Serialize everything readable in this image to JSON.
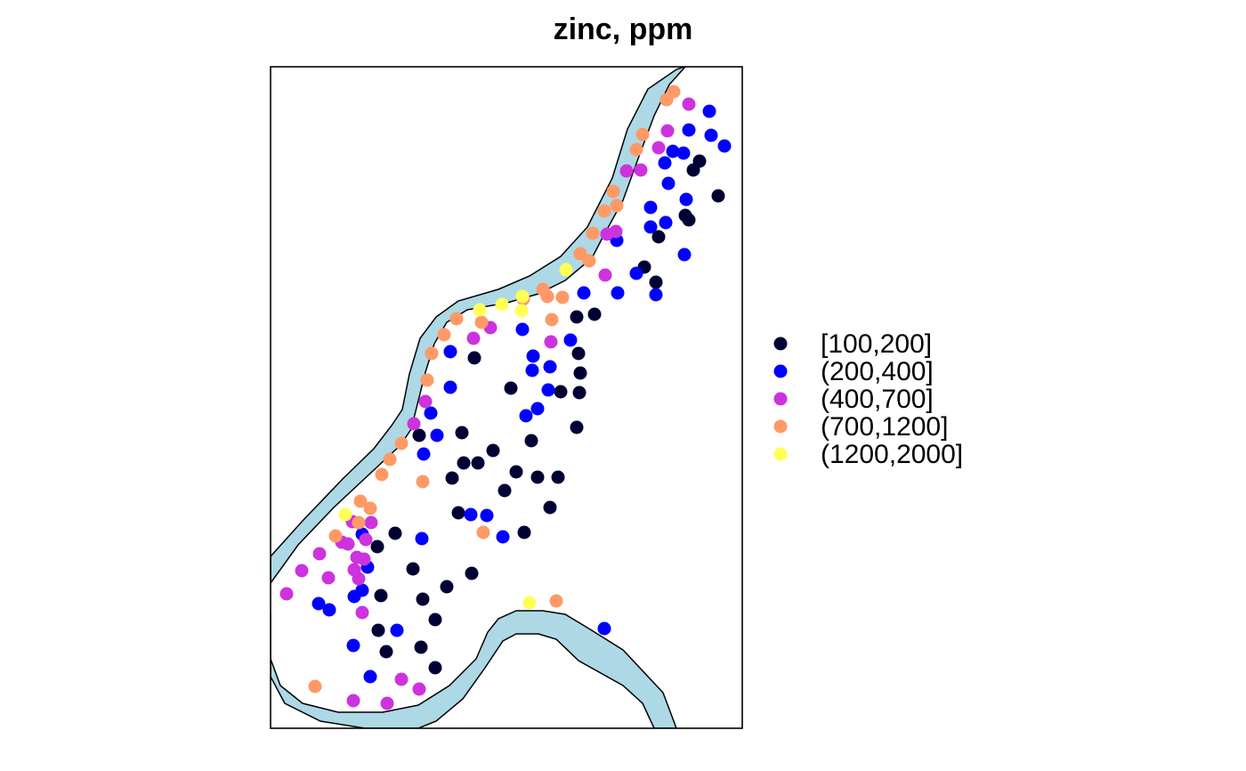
{
  "chart_data": {
    "type": "scatter",
    "title": "zinc, ppm",
    "xlabel": "",
    "ylabel": "",
    "grid": false,
    "legend_position": "right",
    "river_color": "#ADD8E6",
    "classes": [
      {
        "label": "[100,200]",
        "color": "#000033"
      },
      {
        "label": "(200,400]",
        "color": "#0000FF"
      },
      {
        "label": "(400,700]",
        "color": "#CC33DD"
      },
      {
        "label": "(700,1200]",
        "color": "#FF9966"
      },
      {
        "label": "(1200,2000]",
        "color": "#FFFF55"
      }
    ],
    "points": [
      [
        786,
        181,
        0
      ],
      [
        779,
        191,
        0
      ],
      [
        807,
        220,
        0
      ],
      [
        770,
        242,
        0
      ],
      [
        774,
        247,
        0
      ],
      [
        740,
        266,
        0
      ],
      [
        724,
        300,
        0
      ],
      [
        737,
        317,
        0
      ],
      [
        668,
        353,
        0
      ],
      [
        648,
        356,
        0
      ],
      [
        650,
        397,
        0
      ],
      [
        533,
        402,
        0
      ],
      [
        652,
        419,
        0
      ],
      [
        574,
        436,
        0
      ],
      [
        630,
        440,
        0
      ],
      [
        651,
        441,
        0
      ],
      [
        648,
        480,
        0
      ],
      [
        471,
        489,
        0
      ],
      [
        519,
        486,
        0
      ],
      [
        597,
        495,
        0
      ],
      [
        554,
        506,
        0
      ],
      [
        521,
        520,
        0
      ],
      [
        537,
        520,
        0
      ],
      [
        580,
        530,
        0
      ],
      [
        604,
        536,
        0
      ],
      [
        627,
        536,
        0
      ],
      [
        508,
        537,
        0
      ],
      [
        567,
        551,
        0
      ],
      [
        618,
        570,
        0
      ],
      [
        515,
        576,
        0
      ],
      [
        589,
        598,
        0
      ],
      [
        444,
        599,
        0
      ],
      [
        424,
        614,
        0
      ],
      [
        464,
        639,
        0
      ],
      [
        530,
        644,
        0
      ],
      [
        502,
        659,
        0
      ],
      [
        428,
        669,
        0
      ],
      [
        475,
        673,
        0
      ],
      [
        489,
        696,
        0
      ],
      [
        425,
        708,
        0
      ],
      [
        473,
        727,
        0
      ],
      [
        434,
        732,
        0
      ],
      [
        489,
        750,
        0
      ],
      [
        797,
        125,
        1
      ],
      [
        774,
        146,
        1
      ],
      [
        756,
        170,
        1
      ],
      [
        768,
        172,
        1
      ],
      [
        799,
        152,
        1
      ],
      [
        814,
        164,
        1
      ],
      [
        747,
        183,
        1
      ],
      [
        751,
        206,
        1
      ],
      [
        771,
        224,
        1
      ],
      [
        731,
        233,
        1
      ],
      [
        748,
        250,
        1
      ],
      [
        731,
        255,
        1
      ],
      [
        693,
        270,
        1
      ],
      [
        769,
        286,
        1
      ],
      [
        715,
        307,
        1
      ],
      [
        694,
        329,
        1
      ],
      [
        737,
        331,
        1
      ],
      [
        656,
        329,
        1
      ],
      [
        587,
        370,
        1
      ],
      [
        641,
        382,
        1
      ],
      [
        506,
        395,
        1
      ],
      [
        599,
        400,
        1
      ],
      [
        598,
        416,
        1
      ],
      [
        618,
        412,
        1
      ],
      [
        506,
        435,
        1
      ],
      [
        616,
        438,
        1
      ],
      [
        484,
        464,
        1
      ],
      [
        604,
        459,
        1
      ],
      [
        591,
        467,
        1
      ],
      [
        491,
        489,
        1
      ],
      [
        476,
        510,
        1
      ],
      [
        529,
        578,
        1
      ],
      [
        547,
        579,
        1
      ],
      [
        474,
        605,
        1
      ],
      [
        565,
        603,
        1
      ],
      [
        407,
        600,
        1
      ],
      [
        413,
        637,
        1
      ],
      [
        407,
        663,
        1
      ],
      [
        398,
        670,
        1
      ],
      [
        358,
        678,
        1
      ],
      [
        370,
        685,
        1
      ],
      [
        446,
        708,
        1
      ],
      [
        679,
        706,
        1
      ],
      [
        397,
        725,
        1
      ],
      [
        416,
        760,
        1
      ],
      [
        774,
        117,
        2
      ],
      [
        750,
        147,
        2
      ],
      [
        740,
        166,
        2
      ],
      [
        720,
        191,
        2
      ],
      [
        704,
        192,
        2
      ],
      [
        692,
        260,
        2
      ],
      [
        682,
        263,
        2
      ],
      [
        680,
        309,
        2
      ],
      [
        532,
        380,
        2
      ],
      [
        551,
        368,
        2
      ],
      [
        619,
        384,
        2
      ],
      [
        478,
        451,
        2
      ],
      [
        465,
        476,
        2
      ],
      [
        396,
        586,
        2
      ],
      [
        417,
        587,
        2
      ],
      [
        384,
        609,
        2
      ],
      [
        391,
        611,
        2
      ],
      [
        411,
        606,
        2
      ],
      [
        359,
        622,
        2
      ],
      [
        401,
        626,
        2
      ],
      [
        409,
        628,
        2
      ],
      [
        339,
        641,
        2
      ],
      [
        398,
        640,
        2
      ],
      [
        369,
        649,
        2
      ],
      [
        403,
        650,
        2
      ],
      [
        322,
        667,
        2
      ],
      [
        407,
        688,
        2
      ],
      [
        451,
        763,
        2
      ],
      [
        471,
        774,
        2
      ],
      [
        397,
        787,
        2
      ],
      [
        435,
        790,
        2
      ],
      [
        757,
        103,
        3
      ],
      [
        749,
        112,
        3
      ],
      [
        722,
        151,
        3
      ],
      [
        715,
        168,
        3
      ],
      [
        689,
        215,
        3
      ],
      [
        693,
        231,
        3
      ],
      [
        679,
        237,
        3
      ],
      [
        666,
        262,
        3
      ],
      [
        652,
        285,
        3
      ],
      [
        662,
        293,
        3
      ],
      [
        610,
        325,
        3
      ],
      [
        615,
        333,
        3
      ],
      [
        632,
        334,
        3
      ],
      [
        588,
        336,
        3
      ],
      [
        513,
        358,
        3
      ],
      [
        541,
        362,
        3
      ],
      [
        620,
        359,
        3
      ],
      [
        499,
        376,
        3
      ],
      [
        485,
        397,
        3
      ],
      [
        480,
        427,
        3
      ],
      [
        451,
        498,
        3
      ],
      [
        438,
        516,
        3
      ],
      [
        429,
        533,
        3
      ],
      [
        475,
        541,
        3
      ],
      [
        405,
        563,
        3
      ],
      [
        416,
        571,
        3
      ],
      [
        403,
        587,
        3
      ],
      [
        377,
        602,
        3
      ],
      [
        543,
        598,
        3
      ],
      [
        625,
        675,
        3
      ],
      [
        354,
        771,
        3
      ],
      [
        636,
        303,
        4
      ],
      [
        587,
        333,
        4
      ],
      [
        564,
        342,
        4
      ],
      [
        539,
        348,
        4
      ],
      [
        586,
        349,
        4
      ],
      [
        388,
        578,
        4
      ],
      [
        595,
        677,
        4
      ]
    ]
  }
}
